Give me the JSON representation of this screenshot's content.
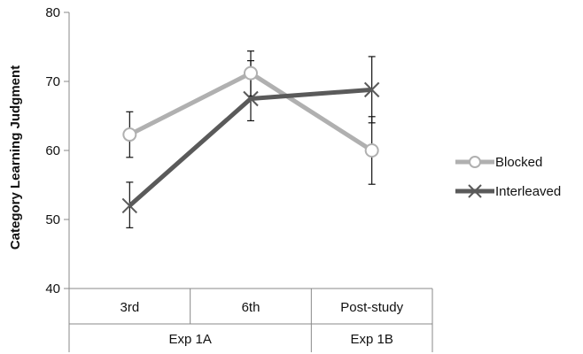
{
  "chart_data": {
    "type": "line",
    "categories": [
      "3rd",
      "6th",
      "Post-study"
    ],
    "groups": [
      {
        "label": "Exp 1A",
        "span": 2
      },
      {
        "label": "Exp 1B",
        "span": 1
      }
    ],
    "ylabel": "Category Learning Judgment",
    "ylim": [
      40,
      80
    ],
    "yticks": [
      40,
      50,
      60,
      70,
      80
    ],
    "legend_position": "right",
    "grid": false,
    "series": [
      {
        "name": "Blocked",
        "values": [
          62.3,
          71.2,
          60.0
        ],
        "err_low": [
          59.0,
          67.9,
          55.1
        ],
        "err_high": [
          65.6,
          74.4,
          64.9
        ],
        "color": "#b0b0b0",
        "marker": "circle"
      },
      {
        "name": "Interleaved",
        "values": [
          52.0,
          67.5,
          68.8
        ],
        "err_low": [
          48.8,
          64.3,
          64.0
        ],
        "err_high": [
          55.4,
          73.0,
          73.6
        ],
        "color": "#5a5a5a",
        "marker": "x"
      }
    ]
  }
}
